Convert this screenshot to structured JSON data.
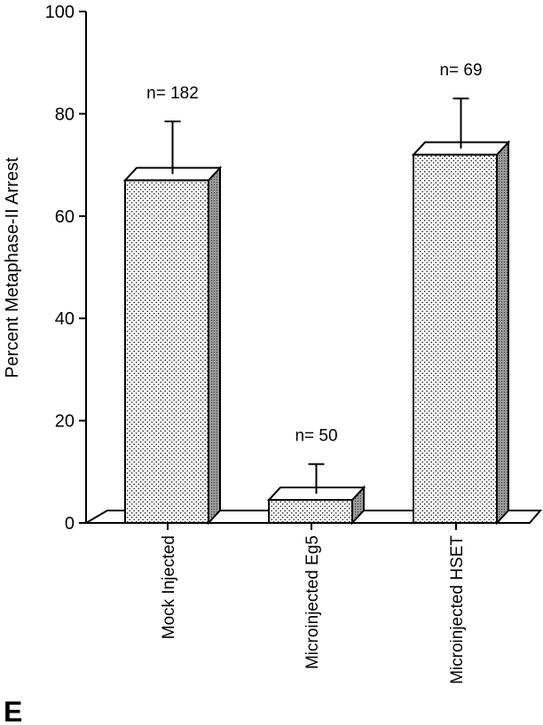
{
  "panel_label": "E",
  "chart_data": {
    "type": "bar",
    "title": "",
    "xlabel": "",
    "ylabel": "Percent Metaphase-II Arrest",
    "ylim": [
      0,
      100
    ],
    "yticks": [
      0,
      20,
      40,
      60,
      80,
      100
    ],
    "categories": [
      "Mock Injected",
      "Microinjected Eg5",
      "Microinjected HSET"
    ],
    "series": [
      {
        "values": [
          67,
          4.5,
          72
        ],
        "error_upper": [
          11.5,
          7,
          11
        ],
        "n_labels": [
          "n= 182",
          "n= 50",
          "n= 69"
        ]
      }
    ],
    "style": "3d-stippled",
    "grid": false,
    "legend": "none"
  }
}
